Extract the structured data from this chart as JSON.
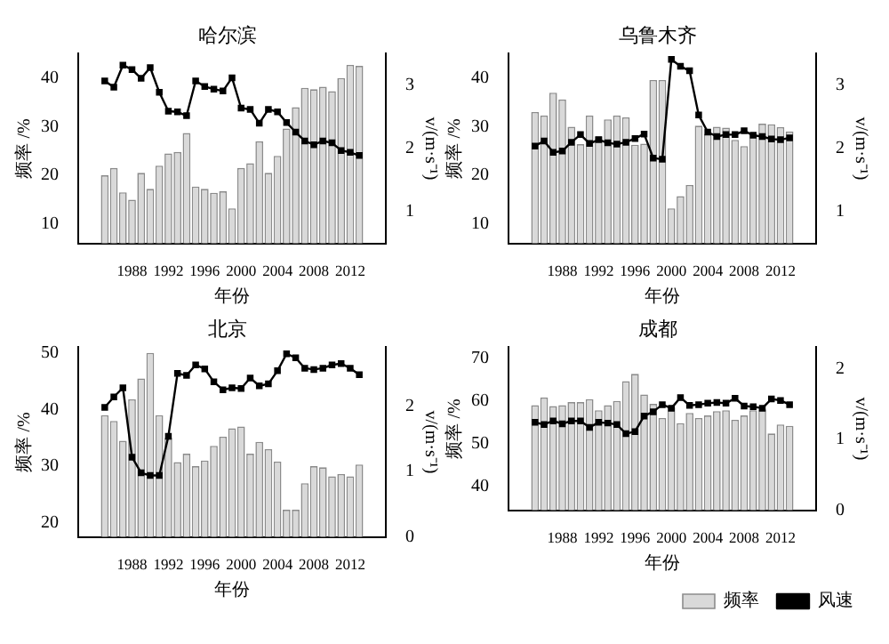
{
  "chart_data": [
    {
      "type": "bar",
      "title": "哈尔滨",
      "xlabel": "年份",
      "ylabel": "频率 /%",
      "y2label": "v/(m·s⁻¹)",
      "x": [
        1985,
        1986,
        1987,
        1988,
        1989,
        1990,
        1991,
        1992,
        1993,
        1994,
        1995,
        1996,
        1997,
        1998,
        1999,
        2000,
        2001,
        2002,
        2003,
        2004,
        2005,
        2006,
        2007,
        2008,
        2009,
        2010,
        2011,
        2012,
        2013
      ],
      "xlim": [
        1984.5,
        2013.5
      ],
      "xticks": [
        1988,
        1992,
        1996,
        2000,
        2004,
        2008,
        2012
      ],
      "ylim": [
        6,
        45
      ],
      "yticks": [
        10,
        20,
        30,
        40
      ],
      "y2lim": [
        0.5,
        3.5
      ],
      "y2ticks": [
        1,
        2,
        3
      ],
      "marker": "square",
      "line_style": "solid",
      "grid": false,
      "legend": false,
      "series": [
        {
          "color": "#d9d9d9",
          "values": [
            20,
            21.5,
            16.5,
            15,
            20.5,
            17.2,
            22,
            24.5,
            24.8,
            28.7,
            17.7,
            17.2,
            16.4,
            16.7,
            13.2,
            21.5,
            22.5,
            27,
            20.5,
            24,
            29.6,
            34,
            38,
            37.7,
            38.2,
            37.3,
            40,
            42.7,
            42.5
          ]
        },
        {
          "type": "line",
          "axis": "y2",
          "color": "#000000",
          "values": [
            3.07,
            2.97,
            3.32,
            3.25,
            3.11,
            3.28,
            2.89,
            2.59,
            2.58,
            2.52,
            3.07,
            2.98,
            2.94,
            2.91,
            3.12,
            2.64,
            2.62,
            2.4,
            2.62,
            2.58,
            2.41,
            2.26,
            2.12,
            2.06,
            2.12,
            2.09,
            1.97,
            1.94,
            1.89
          ]
        }
      ]
    },
    {
      "type": "bar",
      "title": "乌鲁木齐",
      "xlabel": "年份",
      "ylabel": "频率 /%",
      "y2label": "v/(m·s⁻¹)",
      "x": [
        1985,
        1986,
        1987,
        1988,
        1989,
        1990,
        1991,
        1992,
        1993,
        1994,
        1995,
        1996,
        1997,
        1998,
        1999,
        2000,
        2001,
        2002,
        2003,
        2004,
        2005,
        2006,
        2007,
        2008,
        2009,
        2010,
        2011,
        2012,
        2013
      ],
      "xlim": [
        1984.5,
        2013.5
      ],
      "xticks": [
        1988,
        1992,
        1996,
        2000,
        2004,
        2008,
        2012
      ],
      "ylim": [
        6,
        45
      ],
      "yticks": [
        10,
        20,
        30,
        40
      ],
      "y2lim": [
        0.5,
        3.5
      ],
      "y2ticks": [
        1,
        2,
        3
      ],
      "marker": "square",
      "line_style": "solid",
      "grid": false,
      "legend": false,
      "series": [
        {
          "color": "#d9d9d9",
          "values": [
            33,
            32.3,
            37,
            35.6,
            30,
            26.4,
            32.3,
            28,
            31.5,
            32.3,
            31.9,
            26.3,
            26.5,
            39.6,
            39.6,
            13.2,
            15.7,
            18,
            30.2,
            28.5,
            30,
            29.8,
            27.3,
            26,
            28.5,
            30.6,
            30.5,
            29.9,
            29
          ]
        },
        {
          "type": "line",
          "axis": "y2",
          "color": "#000000",
          "values": [
            2.04,
            2.12,
            1.94,
            1.96,
            2.1,
            2.22,
            2.08,
            2.14,
            2.09,
            2.07,
            2.1,
            2.16,
            2.23,
            1.85,
            1.83,
            3.41,
            3.3,
            3.23,
            2.53,
            2.26,
            2.19,
            2.22,
            2.22,
            2.28,
            2.21,
            2.19,
            2.15,
            2.14,
            2.17
          ]
        }
      ]
    },
    {
      "type": "bar",
      "title": "北京",
      "xlabel": "年份",
      "ylabel": "频率 /%",
      "y2label": "v/(m·s⁻¹)",
      "x": [
        1985,
        1986,
        1987,
        1988,
        1989,
        1990,
        1991,
        1992,
        1993,
        1994,
        1995,
        1996,
        1997,
        1998,
        1999,
        2000,
        2001,
        2002,
        2003,
        2004,
        2005,
        2006,
        2007,
        2008,
        2009,
        2010,
        2011,
        2012,
        2013
      ],
      "xlim": [
        1984.5,
        2013.5
      ],
      "xticks": [
        1988,
        1992,
        1996,
        2000,
        2004,
        2008,
        2012
      ],
      "ylim": [
        17.5,
        51
      ],
      "yticks": [
        20,
        30,
        40,
        50
      ],
      "y2lim": [
        0,
        2.9
      ],
      "y2ticks": [
        0,
        1,
        2
      ],
      "marker": "square",
      "line_style": "solid",
      "grid": false,
      "legend": false,
      "series": [
        {
          "color": "#d9d9d9",
          "values": [
            39,
            38,
            34.5,
            41.8,
            45.5,
            50,
            39,
            35,
            30.7,
            32.2,
            30,
            31,
            33.6,
            35.2,
            36.7,
            37,
            32.2,
            34.3,
            33,
            30.8,
            22.3,
            22.3,
            27,
            30,
            29.8,
            28.2,
            28.6,
            28.2,
            30.3
          ]
        },
        {
          "type": "line",
          "axis": "y2",
          "color": "#000000",
          "values": [
            1.98,
            2.14,
            2.28,
            1.22,
            0.98,
            0.94,
            0.94,
            1.54,
            2.5,
            2.47,
            2.63,
            2.57,
            2.37,
            2.25,
            2.28,
            2.27,
            2.43,
            2.31,
            2.34,
            2.54,
            2.8,
            2.74,
            2.58,
            2.56,
            2.58,
            2.63,
            2.65,
            2.58,
            2.48
          ]
        }
      ]
    },
    {
      "type": "bar",
      "title": "成都",
      "xlabel": "年份",
      "ylabel": "频率 /%",
      "y2label": "v/(m·s⁻¹)",
      "x": [
        1985,
        1986,
        1987,
        1988,
        1989,
        1990,
        1991,
        1992,
        1993,
        1994,
        1995,
        1996,
        1997,
        1998,
        1999,
        2000,
        2001,
        2002,
        2003,
        2004,
        2005,
        2006,
        2007,
        2008,
        2009,
        2010,
        2011,
        2012,
        2013
      ],
      "xlim": [
        1984.5,
        2013.5
      ],
      "xticks": [
        1988,
        1992,
        1996,
        2000,
        2004,
        2008,
        2012
      ],
      "ylim": [
        34.5,
        72.5
      ],
      "yticks": [
        40,
        50,
        60,
        70
      ],
      "y2lim": [
        0,
        2.3
      ],
      "y2ticks": [
        0,
        1,
        2
      ],
      "marker": "square",
      "line_style": "solid",
      "grid": false,
      "legend": "bottom",
      "series": [
        {
          "name": "频率",
          "color": "#d9d9d9",
          "values": [
            59,
            60.8,
            58.8,
            59,
            59.7,
            59.7,
            60.4,
            57.8,
            59,
            60,
            64.6,
            66.3,
            61.5,
            59.3,
            56,
            58.5,
            54.8,
            57.2,
            56,
            56.6,
            57.6,
            57.8,
            55.6,
            56.6,
            57.8,
            58,
            52.4,
            54.5,
            54.2
          ]
        },
        {
          "type": "line",
          "name": "风速",
          "axis": "y2",
          "color": "#000000",
          "values": [
            1.24,
            1.21,
            1.26,
            1.22,
            1.26,
            1.26,
            1.17,
            1.24,
            1.23,
            1.21,
            1.08,
            1.11,
            1.33,
            1.39,
            1.49,
            1.44,
            1.59,
            1.48,
            1.49,
            1.51,
            1.52,
            1.51,
            1.58,
            1.47,
            1.46,
            1.44,
            1.57,
            1.55,
            1.49
          ]
        }
      ]
    }
  ]
}
